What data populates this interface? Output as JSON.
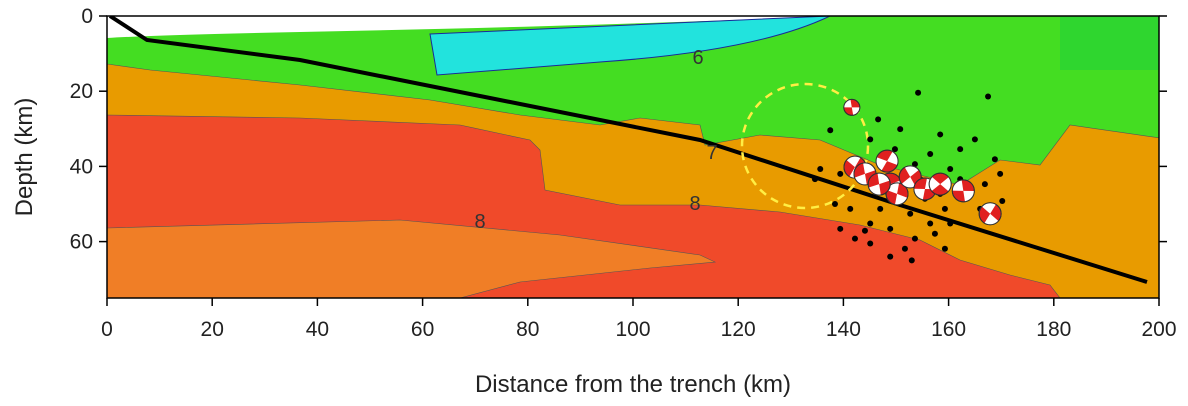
{
  "chart_data": {
    "type": "scatter",
    "xlabel": "Distance from the trench (km)",
    "ylabel": "Depth (km)",
    "xlim": [
      0,
      200
    ],
    "xticks": [
      0,
      20,
      40,
      60,
      80,
      100,
      120,
      140,
      160,
      180,
      200
    ],
    "ylim": [
      0,
      75
    ],
    "yticks": [
      0,
      20,
      40,
      60
    ],
    "y_inverted": true,
    "annotations": [
      "6",
      "7",
      "8",
      "8"
    ],
    "series": [
      {
        "color": "#000000",
        "x": [
          154.2,
          167.5,
          137.5,
          146.6,
          145.1,
          150.8,
          158.4,
          162.2,
          165.0,
          168.8,
          169.8,
          166.9,
          163.1,
          159.3,
          156.5,
          153.6,
          151.7,
          148.9,
          145.1,
          142.2,
          139.4,
          141.3,
          138.4,
          139.4,
          134.6,
          135.6,
          147.0,
          149.8,
          153.6,
          156.5,
          160.3,
          162.2,
          154.6,
          151.7,
          148.9,
          150.8,
          147.0,
          145.1,
          148.9,
          152.7,
          155.5,
          158.4,
          160.3,
          157.4,
          159.3,
          170.2,
          166.0,
          153.0,
          144.1
        ],
        "values": [
          20.4,
          21.4,
          30.4,
          27.5,
          32.8,
          30.1,
          31.5,
          35.4,
          32.8,
          38.1,
          42.0,
          44.7,
          47.3,
          51.3,
          55.2,
          59.2,
          61.9,
          64.0,
          60.5,
          59.2,
          56.6,
          51.3,
          50.0,
          42.0,
          43.4,
          40.7,
          38.1,
          35.4,
          39.4,
          36.7,
          40.7,
          43.4,
          43.4,
          42.0,
          46.0,
          50.0,
          51.3,
          55.2,
          56.6,
          52.6,
          48.6,
          47.3,
          55.2,
          57.9,
          61.9,
          49.2,
          51.3,
          65.0,
          57.1
        ]
      },
      {
        "color": "#e02020",
        "x": [
          141.6,
          142.2,
          144.1,
          148.3,
          148.9,
          150.2,
          152.7,
          155.5,
          158.4,
          162.8,
          167.9,
          146.8
        ],
        "values": [
          24.3,
          40.2,
          42.0,
          38.6,
          44.7,
          47.3,
          42.8,
          46.0,
          44.7,
          46.5,
          52.6,
          44.7
        ]
      }
    ]
  }
}
